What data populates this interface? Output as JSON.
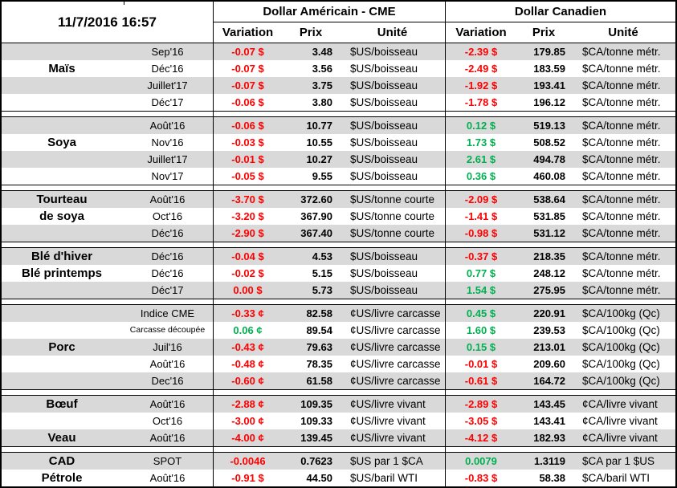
{
  "header": {
    "timestamp": "11/7/2016 16:57",
    "us_title": "Dollar Américain - CME",
    "ca_title": "Dollar Canadien",
    "col_variation": "Variation",
    "col_prix": "Prix",
    "col_unite": "Unité"
  },
  "colors": {
    "negative": "#ff0000",
    "positive": "#00b050",
    "stripe": "#d9d9d9",
    "grid": "#000000"
  },
  "groups": [
    {
      "name": "Maïs",
      "rows": [
        {
          "label": "",
          "month": "Sep'16",
          "us": {
            "variation": "-0.07 $",
            "trend": "down",
            "prix": "3.48",
            "unite": "$US/boisseau"
          },
          "ca": {
            "variation": "-2.39 $",
            "trend": "down",
            "prix": "179.85",
            "unite": "$CA/tonne métr."
          }
        },
        {
          "label": "Maïs",
          "month": "Déc'16",
          "us": {
            "variation": "-0.07 $",
            "trend": "down",
            "prix": "3.56",
            "unite": "$US/boisseau"
          },
          "ca": {
            "variation": "-2.49 $",
            "trend": "down",
            "prix": "183.59",
            "unite": "$CA/tonne métr."
          }
        },
        {
          "label": "",
          "month": "Juillet'17",
          "us": {
            "variation": "-0.07 $",
            "trend": "down",
            "prix": "3.75",
            "unite": "$US/boisseau"
          },
          "ca": {
            "variation": "-1.92 $",
            "trend": "down",
            "prix": "193.41",
            "unite": "$CA/tonne métr."
          }
        },
        {
          "label": "",
          "month": "Déc'17",
          "us": {
            "variation": "-0.06 $",
            "trend": "down",
            "prix": "3.80",
            "unite": "$US/boisseau"
          },
          "ca": {
            "variation": "-1.78 $",
            "trend": "down",
            "prix": "196.12",
            "unite": "$CA/tonne métr."
          }
        }
      ]
    },
    {
      "name": "Soya",
      "rows": [
        {
          "label": "",
          "month": "Août'16",
          "us": {
            "variation": "-0.06 $",
            "trend": "down",
            "prix": "10.77",
            "unite": "$US/boisseau"
          },
          "ca": {
            "variation": "0.12 $",
            "trend": "up",
            "prix": "519.13",
            "unite": "$CA/tonne métr."
          }
        },
        {
          "label": "Soya",
          "month": "Nov'16",
          "us": {
            "variation": "-0.03 $",
            "trend": "down",
            "prix": "10.55",
            "unite": "$US/boisseau"
          },
          "ca": {
            "variation": "1.73 $",
            "trend": "up",
            "prix": "508.52",
            "unite": "$CA/tonne métr."
          }
        },
        {
          "label": "",
          "month": "Juillet'17",
          "us": {
            "variation": "-0.01 $",
            "trend": "down",
            "prix": "10.27",
            "unite": "$US/boisseau"
          },
          "ca": {
            "variation": "2.61 $",
            "trend": "up",
            "prix": "494.78",
            "unite": "$CA/tonne métr."
          }
        },
        {
          "label": "",
          "month": "Nov'17",
          "us": {
            "variation": "-0.05 $",
            "trend": "down",
            "prix": "9.55",
            "unite": "$US/boisseau"
          },
          "ca": {
            "variation": "0.36 $",
            "trend": "up",
            "prix": "460.08",
            "unite": "$CA/tonne métr."
          }
        }
      ]
    },
    {
      "name": "Tourteau de soya",
      "rows": [
        {
          "label": "Tourteau",
          "month": "Août'16",
          "us": {
            "variation": "-3.70 $",
            "trend": "down",
            "prix": "372.60",
            "unite": "$US/tonne courte"
          },
          "ca": {
            "variation": "-2.09 $",
            "trend": "down",
            "prix": "538.64",
            "unite": "$CA/tonne métr."
          }
        },
        {
          "label": "de soya",
          "month": "Oct'16",
          "us": {
            "variation": "-3.20 $",
            "trend": "down",
            "prix": "367.90",
            "unite": "$US/tonne courte"
          },
          "ca": {
            "variation": "-1.41 $",
            "trend": "down",
            "prix": "531.85",
            "unite": "$CA/tonne métr."
          }
        },
        {
          "label": "",
          "month": "Déc'16",
          "us": {
            "variation": "-2.90 $",
            "trend": "down",
            "prix": "367.40",
            "unite": "$US/tonne courte"
          },
          "ca": {
            "variation": "-0.98 $",
            "trend": "down",
            "prix": "531.12",
            "unite": "$CA/tonne métr."
          }
        }
      ]
    },
    {
      "name": "Blé",
      "rows": [
        {
          "label": "Blé d'hiver",
          "month": "Déc'16",
          "us": {
            "variation": "-0.04 $",
            "trend": "down",
            "prix": "4.53",
            "unite": "$US/boisseau"
          },
          "ca": {
            "variation": "-0.37 $",
            "trend": "down",
            "prix": "218.35",
            "unite": "$CA/tonne métr."
          }
        },
        {
          "label": "Blé printemps",
          "month": "Déc'16",
          "us": {
            "variation": "-0.02 $",
            "trend": "down",
            "prix": "5.15",
            "unite": "$US/boisseau"
          },
          "ca": {
            "variation": "0.77 $",
            "trend": "up",
            "prix": "248.12",
            "unite": "$CA/tonne métr."
          }
        },
        {
          "label": "",
          "month": "Déc'17",
          "us": {
            "variation": "0.00 $",
            "trend": "down",
            "prix": "5.73",
            "unite": "$US/boisseau"
          },
          "ca": {
            "variation": "1.54 $",
            "trend": "up",
            "prix": "275.95",
            "unite": "$CA/tonne métr."
          }
        }
      ]
    },
    {
      "name": "Porc",
      "rows": [
        {
          "label": "",
          "month": "Indice CME",
          "us": {
            "variation": "-0.33 ¢",
            "trend": "down",
            "prix": "82.58",
            "unite": "¢US/livre carcasse"
          },
          "ca": {
            "variation": "0.45 $",
            "trend": "up",
            "prix": "220.91",
            "unite": "$CA/100kg (Qc)"
          }
        },
        {
          "label": "",
          "month": "Carcasse découpée",
          "month_small": true,
          "us": {
            "variation": "0.06 ¢",
            "trend": "up",
            "prix": "89.54",
            "unite": "¢US/livre carcasse"
          },
          "ca": {
            "variation": "1.60 $",
            "trend": "up",
            "prix": "239.53",
            "unite": "$CA/100kg (Qc)"
          }
        },
        {
          "label": "Porc",
          "month": "Juil'16",
          "us": {
            "variation": "-0.43 ¢",
            "trend": "down",
            "prix": "79.63",
            "unite": "¢US/livre carcasse"
          },
          "ca": {
            "variation": "0.15 $",
            "trend": "up",
            "prix": "213.01",
            "unite": "$CA/100kg (Qc)"
          }
        },
        {
          "label": "",
          "month": "Août'16",
          "us": {
            "variation": "-0.48 ¢",
            "trend": "down",
            "prix": "78.35",
            "unite": "¢US/livre carcasse"
          },
          "ca": {
            "variation": "-0.01 $",
            "trend": "down",
            "prix": "209.60",
            "unite": "$CA/100kg (Qc)"
          }
        },
        {
          "label": "",
          "month": "Dec'16",
          "us": {
            "variation": "-0.60 ¢",
            "trend": "down",
            "prix": "61.58",
            "unite": "¢US/livre carcasse"
          },
          "ca": {
            "variation": "-0.61 $",
            "trend": "down",
            "prix": "164.72",
            "unite": "$CA/100kg (Qc)"
          }
        }
      ]
    },
    {
      "name": "Bœuf / Veau",
      "rows": [
        {
          "label": "Bœuf",
          "month": "Août'16",
          "us": {
            "variation": "-2.88 ¢",
            "trend": "down",
            "prix": "109.35",
            "unite": "¢US/livre vivant"
          },
          "ca": {
            "variation": "-2.89 $",
            "trend": "down",
            "prix": "143.45",
            "unite": "¢CA/livre vivant"
          }
        },
        {
          "label": "",
          "month": "Oct'16",
          "us": {
            "variation": "-3.00 ¢",
            "trend": "down",
            "prix": "109.33",
            "unite": "¢US/livre vivant"
          },
          "ca": {
            "variation": "-3.05 $",
            "trend": "down",
            "prix": "143.41",
            "unite": "¢CA/livre vivant"
          }
        },
        {
          "label": "Veau",
          "month": "Août'16",
          "us": {
            "variation": "-4.00 ¢",
            "trend": "down",
            "prix": "139.45",
            "unite": "¢US/livre vivant"
          },
          "ca": {
            "variation": "-4.12 $",
            "trend": "down",
            "prix": "182.93",
            "unite": "¢CA/livre vivant"
          }
        }
      ]
    },
    {
      "name": "CAD / Pétrole",
      "rows": [
        {
          "label": "CAD",
          "month": "SPOT",
          "us": {
            "variation": "-0.0046",
            "trend": "down",
            "prix": "0.7623",
            "unite": "$US par 1 $CA"
          },
          "ca": {
            "variation": "0.0079",
            "trend": "up",
            "prix": "1.3119",
            "unite": "$CA par 1 $US"
          }
        },
        {
          "label": "Pétrole",
          "month": "Août'16",
          "us": {
            "variation": "-0.91 $",
            "trend": "down",
            "prix": "44.50",
            "unite": "$US/baril WTI"
          },
          "ca": {
            "variation": "-0.83 $",
            "trend": "down",
            "prix": "58.38",
            "unite": "$CA/baril WTI"
          }
        }
      ]
    }
  ]
}
